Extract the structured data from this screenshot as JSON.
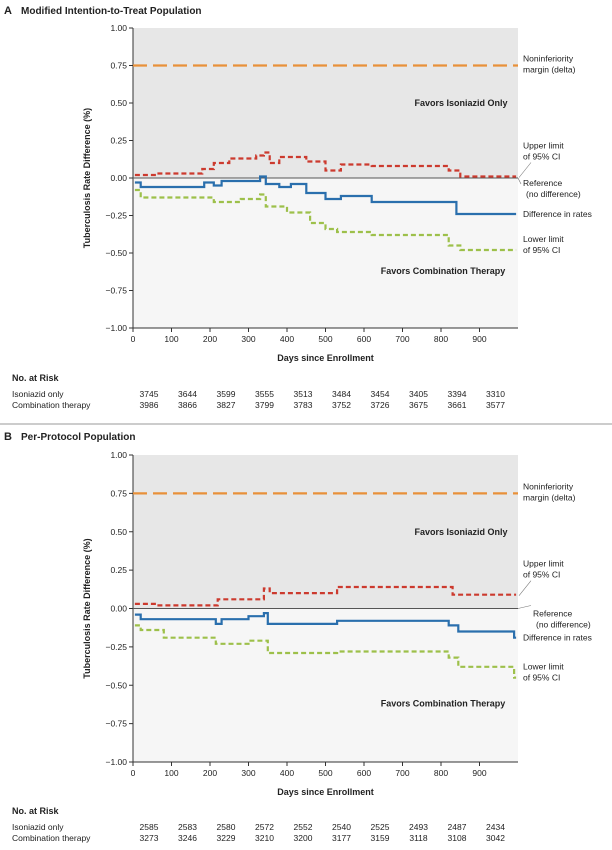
{
  "chart_data": [
    {
      "type": "line",
      "panel_letter": "A",
      "title": "Modified Intention-to-Treat Population",
      "xlabel": "Days since Enrollment",
      "ylabel": "Tuberculosis Rate Difference (%)",
      "xlim": [
        0,
        1000
      ],
      "ylim": [
        -1.0,
        1.0
      ],
      "x_ticks": [
        0,
        100,
        200,
        300,
        400,
        500,
        600,
        700,
        800,
        900
      ],
      "y_ticks": [
        "1.00",
        "0.75",
        "0.50",
        "0.25",
        "0.00",
        "−0.25",
        "−0.50",
        "−0.75",
        "−1.00"
      ],
      "y_tick_values": [
        1.0,
        0.75,
        0.5,
        0.25,
        0.0,
        -0.25,
        -0.5,
        -0.75,
        -1.0
      ],
      "shading": {
        "upper": "#e7e7e7",
        "lower": "#f6f6f6"
      },
      "region_labels": [
        "Favors Isoniazid Only",
        "Favors Combination Therapy"
      ],
      "noninferiority": {
        "value": 0.75,
        "label": [
          "Noninferiority",
          "margin (delta)"
        ],
        "color": "#e8913a"
      },
      "reference_label": [
        "Reference",
        "(no difference)"
      ],
      "series": [
        {
          "name": "Upper limit of 95% CI",
          "label": [
            "Upper limit",
            "of 95% CI"
          ],
          "color": "#cc3a2e",
          "dash": "dash",
          "points": [
            [
              5,
              0.02
            ],
            [
              60,
              0.02
            ],
            [
              60,
              0.03
            ],
            [
              180,
              0.03
            ],
            [
              180,
              0.06
            ],
            [
              210,
              0.06
            ],
            [
              210,
              0.1
            ],
            [
              250,
              0.1
            ],
            [
              250,
              0.13
            ],
            [
              320,
              0.13
            ],
            [
              320,
              0.15
            ],
            [
              340,
              0.15
            ],
            [
              340,
              0.17
            ],
            [
              355,
              0.17
            ],
            [
              355,
              0.1
            ],
            [
              380,
              0.1
            ],
            [
              380,
              0.14
            ],
            [
              450,
              0.14
            ],
            [
              450,
              0.11
            ],
            [
              500,
              0.11
            ],
            [
              500,
              0.05
            ],
            [
              540,
              0.05
            ],
            [
              540,
              0.09
            ],
            [
              620,
              0.09
            ],
            [
              620,
              0.08
            ],
            [
              820,
              0.08
            ],
            [
              820,
              0.05
            ],
            [
              850,
              0.05
            ],
            [
              850,
              0.01
            ],
            [
              995,
              0.01
            ]
          ]
        },
        {
          "name": "Difference in rates",
          "label": [
            "Difference in rates"
          ],
          "color": "#2a6fad",
          "dash": "solid",
          "points": [
            [
              5,
              -0.03
            ],
            [
              20,
              -0.03
            ],
            [
              20,
              -0.06
            ],
            [
              185,
              -0.06
            ],
            [
              185,
              -0.03
            ],
            [
              210,
              -0.03
            ],
            [
              210,
              -0.05
            ],
            [
              230,
              -0.05
            ],
            [
              230,
              -0.02
            ],
            [
              330,
              -0.02
            ],
            [
              330,
              0.01
            ],
            [
              345,
              0.01
            ],
            [
              345,
              -0.04
            ],
            [
              380,
              -0.04
            ],
            [
              380,
              -0.06
            ],
            [
              410,
              -0.06
            ],
            [
              410,
              -0.04
            ],
            [
              450,
              -0.04
            ],
            [
              450,
              -0.1
            ],
            [
              500,
              -0.1
            ],
            [
              500,
              -0.14
            ],
            [
              540,
              -0.14
            ],
            [
              540,
              -0.12
            ],
            [
              620,
              -0.12
            ],
            [
              620,
              -0.16
            ],
            [
              840,
              -0.16
            ],
            [
              840,
              -0.24
            ],
            [
              995,
              -0.24
            ]
          ]
        },
        {
          "name": "Lower limit of 95% CI",
          "label": [
            "Lower limit",
            "of 95% CI"
          ],
          "color": "#9dc04a",
          "dash": "dash",
          "points": [
            [
              5,
              -0.08
            ],
            [
              20,
              -0.08
            ],
            [
              20,
              -0.13
            ],
            [
              210,
              -0.13
            ],
            [
              210,
              -0.16
            ],
            [
              280,
              -0.16
            ],
            [
              280,
              -0.14
            ],
            [
              330,
              -0.14
            ],
            [
              330,
              -0.11
            ],
            [
              345,
              -0.11
            ],
            [
              345,
              -0.19
            ],
            [
              400,
              -0.19
            ],
            [
              400,
              -0.23
            ],
            [
              460,
              -0.23
            ],
            [
              460,
              -0.3
            ],
            [
              500,
              -0.3
            ],
            [
              500,
              -0.34
            ],
            [
              530,
              -0.34
            ],
            [
              530,
              -0.36
            ],
            [
              620,
              -0.36
            ],
            [
              620,
              -0.38
            ],
            [
              820,
              -0.38
            ],
            [
              820,
              -0.45
            ],
            [
              850,
              -0.45
            ],
            [
              850,
              -0.48
            ],
            [
              995,
              -0.48
            ]
          ]
        }
      ],
      "risk_table": {
        "header": "No. at Risk",
        "rows": [
          {
            "label": "Isoniazid only",
            "values": [
              "3745",
              "3644",
              "3599",
              "3555",
              "3513",
              "3484",
              "3454",
              "3405",
              "3394",
              "3310"
            ]
          },
          {
            "label": "Combination therapy",
            "values": [
              "3986",
              "3866",
              "3827",
              "3799",
              "3783",
              "3752",
              "3726",
              "3675",
              "3661",
              "3577"
            ]
          }
        ]
      }
    },
    {
      "type": "line",
      "panel_letter": "B",
      "title": "Per-Protocol Population",
      "xlabel": "Days since Enrollment",
      "ylabel": "Tuberculosis Rate Difference (%)",
      "xlim": [
        0,
        1000
      ],
      "ylim": [
        -1.0,
        1.0
      ],
      "x_ticks": [
        0,
        100,
        200,
        300,
        400,
        500,
        600,
        700,
        800,
        900
      ],
      "y_ticks": [
        "1.00",
        "0.75",
        "0.50",
        "0.25",
        "0.00",
        "−0.25",
        "−0.50",
        "−0.75",
        "−1.00"
      ],
      "y_tick_values": [
        1.0,
        0.75,
        0.5,
        0.25,
        0.0,
        -0.25,
        -0.5,
        -0.75,
        -1.0
      ],
      "shading": {
        "upper": "#e7e7e7",
        "lower": "#f6f6f6"
      },
      "region_labels": [
        "Favors Isoniazid Only",
        "Favors Combination Therapy"
      ],
      "noninferiority": {
        "value": 0.75,
        "label": [
          "Noninferiority",
          "margin (delta)"
        ],
        "color": "#e8913a"
      },
      "reference_label": [
        "Reference",
        "(no difference)"
      ],
      "series": [
        {
          "name": "Upper limit of 95% CI",
          "label": [
            "Upper limit",
            "of 95% CI"
          ],
          "color": "#cc3a2e",
          "dash": "dash",
          "points": [
            [
              5,
              0.03
            ],
            [
              60,
              0.03
            ],
            [
              60,
              0.02
            ],
            [
              220,
              0.02
            ],
            [
              220,
              0.06
            ],
            [
              340,
              0.06
            ],
            [
              340,
              0.13
            ],
            [
              355,
              0.13
            ],
            [
              355,
              0.1
            ],
            [
              530,
              0.1
            ],
            [
              530,
              0.14
            ],
            [
              830,
              0.14
            ],
            [
              830,
              0.09
            ],
            [
              995,
              0.09
            ]
          ]
        },
        {
          "name": "Difference in rates",
          "label": [
            "Difference in rates"
          ],
          "color": "#2a6fad",
          "dash": "solid",
          "points": [
            [
              5,
              -0.04
            ],
            [
              20,
              -0.04
            ],
            [
              20,
              -0.07
            ],
            [
              215,
              -0.07
            ],
            [
              215,
              -0.1
            ],
            [
              230,
              -0.1
            ],
            [
              230,
              -0.07
            ],
            [
              300,
              -0.07
            ],
            [
              300,
              -0.05
            ],
            [
              340,
              -0.05
            ],
            [
              340,
              -0.03
            ],
            [
              350,
              -0.03
            ],
            [
              350,
              -0.1
            ],
            [
              530,
              -0.1
            ],
            [
              530,
              -0.08
            ],
            [
              820,
              -0.08
            ],
            [
              820,
              -0.11
            ],
            [
              845,
              -0.11
            ],
            [
              845,
              -0.15
            ],
            [
              990,
              -0.15
            ],
            [
              990,
              -0.19
            ],
            [
              995,
              -0.19
            ]
          ]
        },
        {
          "name": "Lower limit of 95% CI",
          "label": [
            "Lower limit",
            "of 95% CI"
          ],
          "color": "#9dc04a",
          "dash": "dash",
          "points": [
            [
              5,
              -0.11
            ],
            [
              20,
              -0.11
            ],
            [
              20,
              -0.14
            ],
            [
              80,
              -0.14
            ],
            [
              80,
              -0.19
            ],
            [
              215,
              -0.19
            ],
            [
              215,
              -0.23
            ],
            [
              300,
              -0.23
            ],
            [
              300,
              -0.21
            ],
            [
              350,
              -0.21
            ],
            [
              350,
              -0.29
            ],
            [
              530,
              -0.29
            ],
            [
              530,
              -0.28
            ],
            [
              820,
              -0.28
            ],
            [
              820,
              -0.32
            ],
            [
              845,
              -0.32
            ],
            [
              845,
              -0.38
            ],
            [
              990,
              -0.38
            ],
            [
              990,
              -0.45
            ],
            [
              995,
              -0.45
            ]
          ]
        }
      ],
      "risk_table": {
        "header": "No. at Risk",
        "rows": [
          {
            "label": "Isoniazid only",
            "values": [
              "2585",
              "2583",
              "2580",
              "2572",
              "2552",
              "2540",
              "2525",
              "2493",
              "2487",
              "2434"
            ]
          },
          {
            "label": "Combination therapy",
            "values": [
              "3273",
              "3246",
              "3229",
              "3210",
              "3200",
              "3177",
              "3159",
              "3118",
              "3108",
              "3042"
            ]
          }
        ]
      }
    }
  ]
}
